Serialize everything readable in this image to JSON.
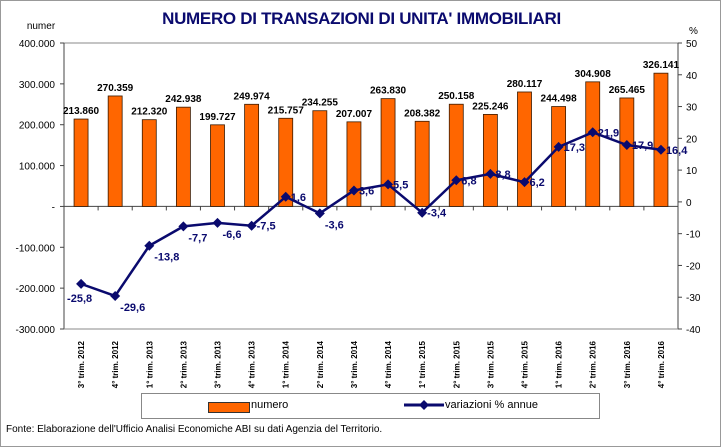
{
  "chart_data": {
    "type": "bar+line",
    "title": "NUMERO DI TRANSAZIONI DI UNITA' IMMOBILIARI",
    "y_left_label": "numer",
    "y_right_label": "%",
    "categories": [
      "3° trim. 2012",
      "4° trim. 2012",
      "1° trim. 2013",
      "2° trim. 2013",
      "3° trim. 2013",
      "4° trim. 2013",
      "1° trim. 2014",
      "2° trim. 2014",
      "3° trim. 2014",
      "4° trim. 2014",
      "1° trim. 2015",
      "2° trim. 2015",
      "3° trim. 2015",
      "4° trim. 2015",
      "1° trim. 2016",
      "2° trim. 2016",
      "3° trim. 2016",
      "4° trim. 2016"
    ],
    "series": [
      {
        "name": "numero",
        "type": "bar",
        "axis": "left",
        "color": "#ff6600",
        "values": [
          213860,
          270359,
          212320,
          242938,
          199727,
          249974,
          215757,
          234255,
          207007,
          263830,
          208382,
          250158,
          225246,
          280117,
          244498,
          304908,
          265465,
          326141
        ],
        "labels": [
          "213.860",
          "270.359",
          "212.320",
          "242.938",
          "199.727",
          "249.974",
          "215.757",
          "234.255",
          "207.007",
          "263.830",
          "208.382",
          "250.158",
          "225.246",
          "280.117",
          "244.498",
          "304.908",
          "265.465",
          "326.141"
        ]
      },
      {
        "name": "variazioni % annue",
        "type": "line",
        "axis": "right",
        "color": "#0a0a6e",
        "values": [
          -25.8,
          -29.6,
          -13.8,
          -7.7,
          -6.6,
          -7.5,
          1.6,
          -3.6,
          3.6,
          5.5,
          -3.4,
          6.8,
          8.8,
          6.2,
          17.3,
          21.9,
          17.9,
          16.4
        ],
        "labels": [
          "-25,8",
          "-29,6",
          "-13,8",
          "-7,7",
          "-6,6",
          "-7,5",
          "1,6",
          "-3,6",
          "3,6",
          "5,5",
          "-3,4",
          "6,8",
          "8,8",
          "6,2",
          "17,3",
          "21,9",
          "17,9",
          "16,4"
        ]
      }
    ],
    "ylim_left": [
      -300000,
      400000
    ],
    "yticks_left": [
      "400.000",
      "300.000",
      "200.000",
      "100.000",
      "-",
      "-100.000",
      "-200.000",
      "-300.000"
    ],
    "ylim_right": [
      -40,
      50
    ],
    "yticks_right": [
      "50",
      "40",
      "30",
      "20",
      "10",
      "0",
      "-10",
      "-20",
      "-30",
      "-40"
    ],
    "grid": false,
    "legend": "bottom"
  },
  "footer": "Fonte: Elaborazione dell'Ufficio Analisi Economiche ABI su dati Agenzia del Territorio."
}
